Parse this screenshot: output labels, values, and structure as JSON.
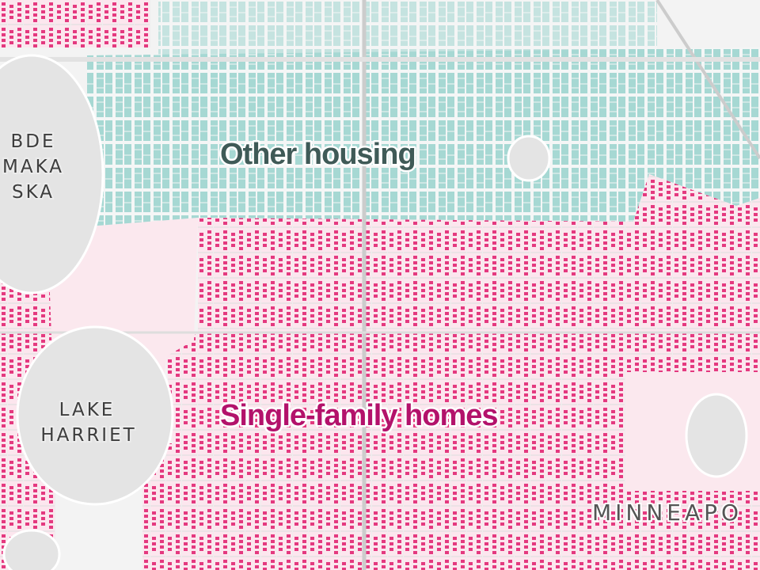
{
  "lakes": [
    {
      "lines": [
        "BDE",
        "MAKA",
        "SKA"
      ]
    },
    {
      "lines": [
        "LAKE",
        "HARRIET"
      ]
    }
  ],
  "city": "MINNEAPO",
  "legend": {
    "other_housing": "Other housing",
    "single_family": "Single-family homes"
  }
}
